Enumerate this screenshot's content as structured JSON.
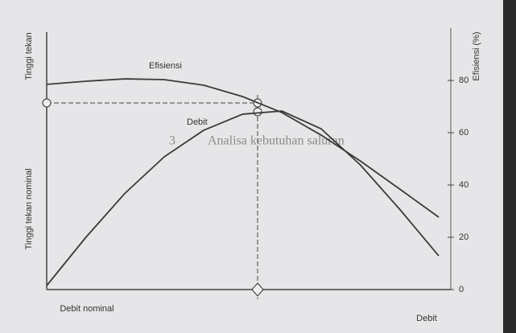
{
  "heading": {
    "number": "3",
    "text": "Analisa kebutuhan saluran"
  },
  "chart_data": {
    "type": "line",
    "x": [
      0,
      10,
      20,
      30,
      40,
      50,
      60,
      70,
      80,
      90,
      100
    ],
    "xlim": [
      0,
      100
    ],
    "ylim": [
      0,
      100
    ],
    "y2ticks": [
      0,
      20,
      40,
      60,
      80
    ],
    "y_label": "Tinggi tekan",
    "y_label_nominal": "Tinggi tekan nominal",
    "x_label_nominal": "Debit nominal",
    "x_label": "Debit",
    "y2_label": "Efisiensi (%)",
    "series": [
      {
        "name": "Efisiensi",
        "color": "#3a3a3a",
        "values": [
          78.5,
          79.7,
          80.6,
          80.3,
          78.2,
          73.8,
          67.7,
          59.1,
          49.2,
          38.5,
          27.7
        ]
      },
      {
        "name": "Debit",
        "color": "#3a3a3a",
        "values": [
          1.5,
          20,
          36.9,
          50.8,
          60.9,
          67.1,
          68.3,
          61.5,
          47.7,
          30.8,
          12.9
        ]
      }
    ]
  }
}
